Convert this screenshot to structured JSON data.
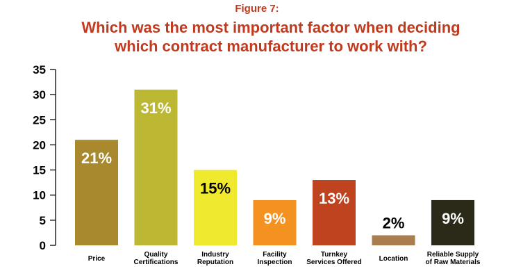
{
  "figure_label": "Figure 7:",
  "title_lines": [
    "Which was the most important factor when deciding",
    "which contract manufacturer to work with?"
  ],
  "colors": {
    "title": "#c23a1e",
    "axis": "#000000"
  },
  "chart_data": {
    "type": "bar",
    "title": "Which was the most important factor when deciding which contract manufacturer to work with?",
    "categories": [
      [
        "Price"
      ],
      [
        "Quality",
        "Certifications"
      ],
      [
        "Industry",
        "Reputation"
      ],
      [
        "Facility",
        "Inspection"
      ],
      [
        "Turnkey",
        "Services Offered"
      ],
      [
        "Location"
      ],
      [
        "Reliable Supply",
        "of Raw Materials"
      ]
    ],
    "values": [
      21,
      31,
      15,
      9,
      13,
      2,
      9
    ],
    "data_labels": [
      "21%",
      "31%",
      "15%",
      "9%",
      "13%",
      "2%",
      "9%"
    ],
    "bar_colors": [
      "#a9892e",
      "#bcb833",
      "#f0ea2e",
      "#f39221",
      "#c0431f",
      "#a97d4d",
      "#2b2a18"
    ],
    "label_colors": [
      "#ffffff",
      "#ffffff",
      "#000000",
      "#ffffff",
      "#ffffff",
      "#000000",
      "#ffffff"
    ],
    "ylim": [
      0,
      35
    ],
    "yticks": [
      0,
      5,
      10,
      15,
      20,
      25,
      30,
      35
    ],
    "xlabel": "",
    "ylabel": "",
    "grid": false,
    "legend": "none"
  }
}
